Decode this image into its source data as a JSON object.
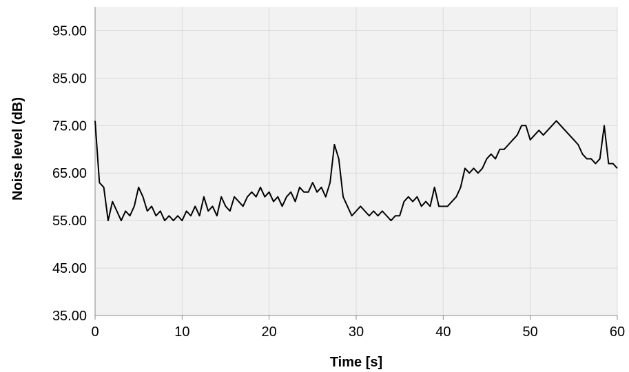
{
  "chart_data": {
    "type": "line",
    "x_label": "Time [s]",
    "y_label": "Noise level (dB)",
    "x": [
      0,
      0.5,
      1,
      1.5,
      2,
      2.5,
      3,
      3.5,
      4,
      4.5,
      5,
      5.5,
      6,
      6.5,
      7,
      7.5,
      8,
      8.5,
      9,
      9.5,
      10,
      10.5,
      11,
      11.5,
      12,
      12.5,
      13,
      13.5,
      14,
      14.5,
      15,
      15.5,
      16,
      16.5,
      17,
      17.5,
      18,
      18.5,
      19,
      19.5,
      20,
      20.5,
      21,
      21.5,
      22,
      22.5,
      23,
      23.5,
      24,
      24.5,
      25,
      25.5,
      26,
      26.5,
      27,
      27.5,
      28,
      28.5,
      29,
      29.5,
      30,
      30.5,
      31,
      31.5,
      32,
      32.5,
      33,
      33.5,
      34,
      34.5,
      35,
      35.5,
      36,
      36.5,
      37,
      37.5,
      38,
      38.5,
      39,
      39.5,
      40,
      40.5,
      41,
      41.5,
      42,
      42.5,
      43,
      43.5,
      44,
      44.5,
      45,
      45.5,
      46,
      46.5,
      47,
      47.5,
      48,
      48.5,
      49,
      49.5,
      50,
      50.5,
      51,
      51.5,
      52,
      52.5,
      53,
      53.5,
      54,
      54.5,
      55,
      55.5,
      56,
      56.5,
      57,
      57.5,
      58,
      58.5,
      59,
      59.5,
      60
    ],
    "series": [
      {
        "name": "Noise level",
        "color": "#000000",
        "values": [
          76,
          63,
          62,
          55,
          59,
          57,
          55,
          57,
          56,
          58,
          62,
          60,
          57,
          58,
          56,
          57,
          55,
          56,
          55,
          56,
          55,
          57,
          56,
          58,
          56,
          60,
          57,
          58,
          56,
          60,
          58,
          57,
          60,
          59,
          58,
          60,
          61,
          60,
          62,
          60,
          61,
          59,
          60,
          58,
          60,
          61,
          59,
          62,
          61,
          61,
          63,
          61,
          62,
          60,
          63,
          71,
          68,
          60,
          58,
          56,
          57,
          58,
          57,
          56,
          57,
          56,
          57,
          56,
          55,
          56,
          56,
          59,
          60,
          59,
          60,
          58,
          59,
          58,
          62,
          58,
          58,
          58,
          59,
          60,
          62,
          66,
          65,
          66,
          65,
          66,
          68,
          69,
          68,
          70,
          70,
          71,
          72,
          73,
          75,
          75,
          72,
          73,
          74,
          73,
          74,
          75,
          76,
          75,
          74,
          73,
          72,
          71,
          69,
          68,
          68,
          67,
          68,
          75,
          67,
          67,
          66
        ]
      }
    ],
    "xlim": [
      0,
      60
    ],
    "xticks": [
      0,
      10,
      20,
      30,
      40,
      50,
      60
    ],
    "ylim": [
      35,
      100
    ],
    "yticks": [
      {
        "value": 35,
        "label": "35.00"
      },
      {
        "value": 45,
        "label": "45.00"
      },
      {
        "value": 55,
        "label": "55.00"
      },
      {
        "value": 65,
        "label": "65.00"
      },
      {
        "value": 75,
        "label": "75.00"
      },
      {
        "value": 85,
        "label": "85.00"
      },
      {
        "value": 95,
        "label": "95.00"
      }
    ],
    "grid": true
  }
}
